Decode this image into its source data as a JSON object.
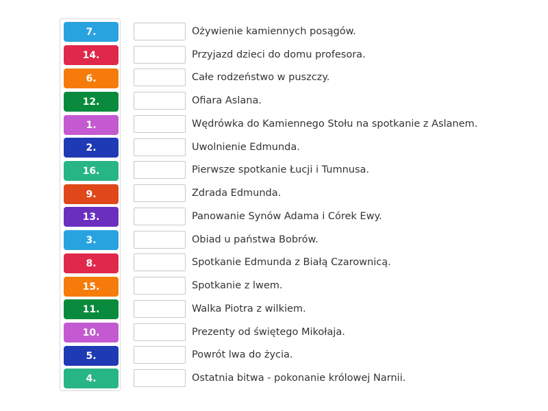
{
  "tiles": [
    {
      "label": "7.",
      "color": "#29a3e0"
    },
    {
      "label": "14.",
      "color": "#e0284a"
    },
    {
      "label": "6.",
      "color": "#f57c0a"
    },
    {
      "label": "12.",
      "color": "#0a8a3c"
    },
    {
      "label": "1.",
      "color": "#c45ad1"
    },
    {
      "label": "2.",
      "color": "#1f3ab5"
    },
    {
      "label": "16.",
      "color": "#27b585"
    },
    {
      "label": "9.",
      "color": "#e0471a"
    },
    {
      "label": "13.",
      "color": "#6a2fbf"
    },
    {
      "label": "3.",
      "color": "#29a3e0"
    },
    {
      "label": "8.",
      "color": "#e0284a"
    },
    {
      "label": "15.",
      "color": "#f57c0a"
    },
    {
      "label": "11.",
      "color": "#0a8a3c"
    },
    {
      "label": "10.",
      "color": "#c45ad1"
    },
    {
      "label": "5.",
      "color": "#1f3ab5"
    },
    {
      "label": "4.",
      "color": "#27b585"
    }
  ],
  "rows": [
    {
      "label": "Ożywienie kamiennych posągów."
    },
    {
      "label": "Przyjazd dzieci do domu profesora."
    },
    {
      "label": "Całe rodzeństwo w puszczy."
    },
    {
      "label": "Ofiara Aslana."
    },
    {
      "label": "Wędrówka do Kamiennego Stołu na spotkanie z Aslanem."
    },
    {
      "label": "Uwolnienie Edmunda."
    },
    {
      "label": "Pierwsze spotkanie Łucji i Tumnusa."
    },
    {
      "label": "Zdrada Edmunda."
    },
    {
      "label": "Panowanie Synów Adama i Córek Ewy."
    },
    {
      "label": "Obiad u państwa Bobrów."
    },
    {
      "label": "Spotkanie Edmunda z Białą Czarownicą."
    },
    {
      "label": "Spotkanie z lwem."
    },
    {
      "label": "Walka Piotra z wilkiem."
    },
    {
      "label": "Prezenty od świętego Mikołaja."
    },
    {
      "label": "Powrót lwa do życia."
    },
    {
      "label": "Ostatnia bitwa - pokonanie królowej Narnii."
    }
  ]
}
